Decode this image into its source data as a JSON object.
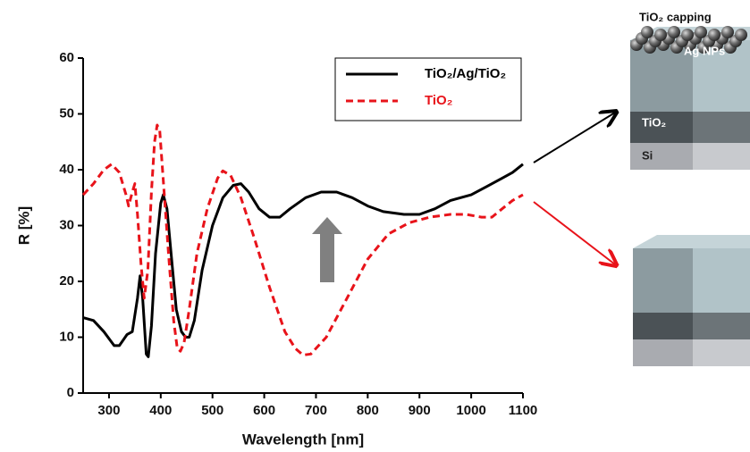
{
  "chart_data": {
    "type": "line",
    "x_label": "Wavelength [nm]",
    "y_label": "R [%]",
    "xlim": [
      250,
      1100
    ],
    "xticks": [
      300,
      400,
      500,
      600,
      700,
      800,
      900,
      1000,
      1100
    ],
    "ylim": [
      0,
      60
    ],
    "yticks": [
      0,
      10,
      20,
      30,
      40,
      50,
      60
    ],
    "legend": "top-right",
    "series": [
      {
        "name": "TiO₂/Ag/TiO₂",
        "color": "#000000",
        "style": "solid",
        "x": [
          250,
          270,
          290,
          310,
          320,
          335,
          345,
          355,
          360,
          365,
          372,
          376,
          382,
          390,
          400,
          405,
          412,
          420,
          430,
          440,
          448,
          455,
          465,
          480,
          500,
          520,
          540,
          555,
          570,
          590,
          610,
          630,
          650,
          680,
          710,
          740,
          770,
          800,
          830,
          870,
          900,
          930,
          960,
          1000,
          1030,
          1060,
          1080,
          1100
        ],
        "values": [
          13.5,
          13,
          11,
          8.5,
          8.5,
          10.5,
          11,
          17,
          21,
          17,
          7,
          6.5,
          12,
          25,
          34,
          35.5,
          33,
          25,
          15,
          11,
          10,
          10,
          13,
          22,
          30,
          35,
          37.2,
          37.5,
          36,
          33,
          31.5,
          31.5,
          33,
          35,
          36,
          36,
          35,
          33.5,
          32.5,
          32,
          32,
          33,
          34.5,
          35.5,
          37,
          38.5,
          39.5,
          41
        ]
      },
      {
        "name": "TiO₂",
        "color": "#e8131a",
        "style": "dashed",
        "x": [
          250,
          270,
          290,
          305,
          320,
          333,
          338,
          345,
          350,
          355,
          362,
          368,
          375,
          382,
          388,
          393,
          398,
          405,
          415,
          425,
          432,
          438,
          445,
          455,
          470,
          490,
          510,
          520,
          535,
          555,
          580,
          610,
          640,
          660,
          675,
          690,
          720,
          760,
          800,
          840,
          880,
          920,
          960,
          990,
          1020,
          1040,
          1060,
          1080,
          1100
        ],
        "values": [
          35.5,
          37.5,
          40,
          41,
          39.5,
          35.5,
          33.5,
          36,
          37.5,
          32,
          23,
          17,
          22,
          36,
          45,
          48,
          47,
          38,
          25,
          13,
          8,
          7.5,
          9,
          15,
          25,
          33,
          38.5,
          39.8,
          39,
          35,
          28,
          19,
          11,
          8,
          6.8,
          7,
          10,
          17,
          24,
          28.5,
          30.5,
          31.5,
          32,
          32,
          31.5,
          31.5,
          33,
          34.5,
          35.5
        ]
      }
    ],
    "annotations": [
      "TiO₂ capping",
      "Ag NPs",
      "TiO₂",
      "Si"
    ]
  }
}
